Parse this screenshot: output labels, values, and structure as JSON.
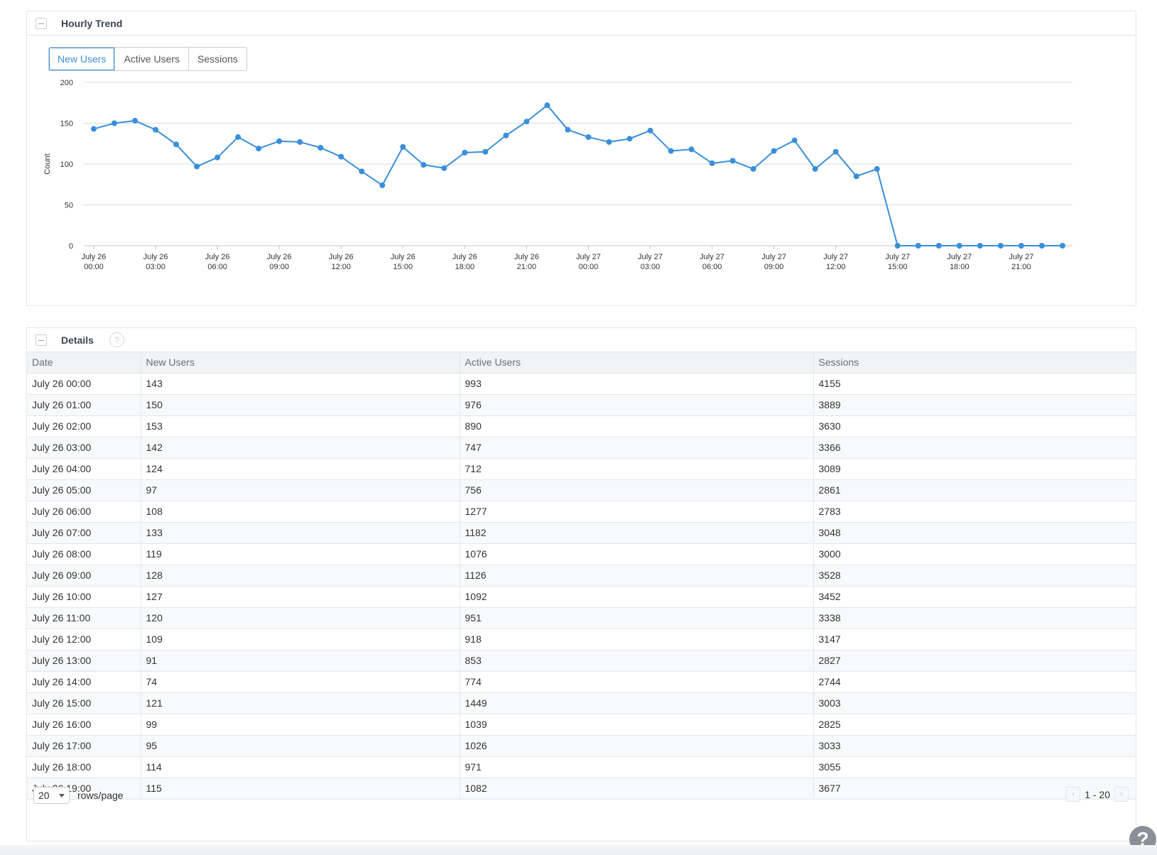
{
  "trend": {
    "title": "Hourly Trend",
    "tabs": [
      "New Users",
      "Active Users",
      "Sessions"
    ],
    "active_tab": "New Users"
  },
  "chart_data": {
    "type": "line",
    "ylabel": "Count",
    "ylim": [
      0,
      200
    ],
    "yticks": [
      0,
      50,
      100,
      150,
      200
    ],
    "xtick_labels": [
      [
        "July 26",
        "00:00"
      ],
      [
        "July 26",
        "03:00"
      ],
      [
        "July 26",
        "06:00"
      ],
      [
        "July 26",
        "09:00"
      ],
      [
        "July 26",
        "12:00"
      ],
      [
        "July 26",
        "15:00"
      ],
      [
        "July 26",
        "18:00"
      ],
      [
        "July 26",
        "21:00"
      ],
      [
        "July 27",
        "00:00"
      ],
      [
        "July 27",
        "03:00"
      ],
      [
        "July 27",
        "06:00"
      ],
      [
        "July 27",
        "09:00"
      ],
      [
        "July 27",
        "12:00"
      ],
      [
        "July 27",
        "15:00"
      ],
      [
        "July 27",
        "18:00"
      ],
      [
        "July 27",
        "21:00"
      ]
    ],
    "x_hours": [
      0,
      1,
      2,
      3,
      4,
      5,
      6,
      7,
      8,
      9,
      10,
      11,
      12,
      13,
      14,
      15,
      16,
      17,
      18,
      19,
      20,
      21,
      22,
      23,
      24,
      25,
      26,
      27,
      28,
      29,
      30,
      31,
      32,
      33,
      34,
      35,
      36,
      37,
      38,
      39,
      40,
      41,
      42,
      43,
      44,
      45,
      46,
      47
    ],
    "values": [
      143,
      150,
      153,
      142,
      124,
      97,
      108,
      133,
      119,
      128,
      127,
      120,
      109,
      91,
      74,
      121,
      99,
      95,
      114,
      115,
      135,
      152,
      172,
      142,
      133,
      127,
      131,
      141,
      116,
      118,
      101,
      104,
      94,
      116,
      129,
      94,
      115,
      85,
      94,
      0,
      0,
      0,
      0,
      0,
      0,
      0,
      0,
      0
    ],
    "color": "#3a8fd9",
    "grid": true
  },
  "details": {
    "title": "Details",
    "help_symbol": "?",
    "columns": [
      "Date",
      "New Users",
      "Active Users",
      "Sessions"
    ],
    "rows": [
      [
        "July 26 00:00",
        "143",
        "993",
        "4155"
      ],
      [
        "July 26 01:00",
        "150",
        "976",
        "3889"
      ],
      [
        "July 26 02:00",
        "153",
        "890",
        "3630"
      ],
      [
        "July 26 03:00",
        "142",
        "747",
        "3366"
      ],
      [
        "July 26 04:00",
        "124",
        "712",
        "3089"
      ],
      [
        "July 26 05:00",
        "97",
        "756",
        "2861"
      ],
      [
        "July 26 06:00",
        "108",
        "1277",
        "2783"
      ],
      [
        "July 26 07:00",
        "133",
        "1182",
        "3048"
      ],
      [
        "July 26 08:00",
        "119",
        "1076",
        "3000"
      ],
      [
        "July 26 09:00",
        "128",
        "1126",
        "3528"
      ],
      [
        "July 26 10:00",
        "127",
        "1092",
        "3452"
      ],
      [
        "July 26 11:00",
        "120",
        "951",
        "3338"
      ],
      [
        "July 26 12:00",
        "109",
        "918",
        "3147"
      ],
      [
        "July 26 13:00",
        "91",
        "853",
        "2827"
      ],
      [
        "July 26 14:00",
        "74",
        "774",
        "2744"
      ],
      [
        "July 26 15:00",
        "121",
        "1449",
        "3003"
      ],
      [
        "July 26 16:00",
        "99",
        "1039",
        "2825"
      ],
      [
        "July 26 17:00",
        "95",
        "1026",
        "3033"
      ],
      [
        "July 26 18:00",
        "114",
        "971",
        "3055"
      ],
      [
        "July 26 19:00",
        "115",
        "1082",
        "3677"
      ]
    ],
    "footer": {
      "rows_per_page": "20",
      "rows_label": "rows/page",
      "range": "1 - 20",
      "prev": "‹",
      "next": "›"
    }
  },
  "help_fab": "?"
}
